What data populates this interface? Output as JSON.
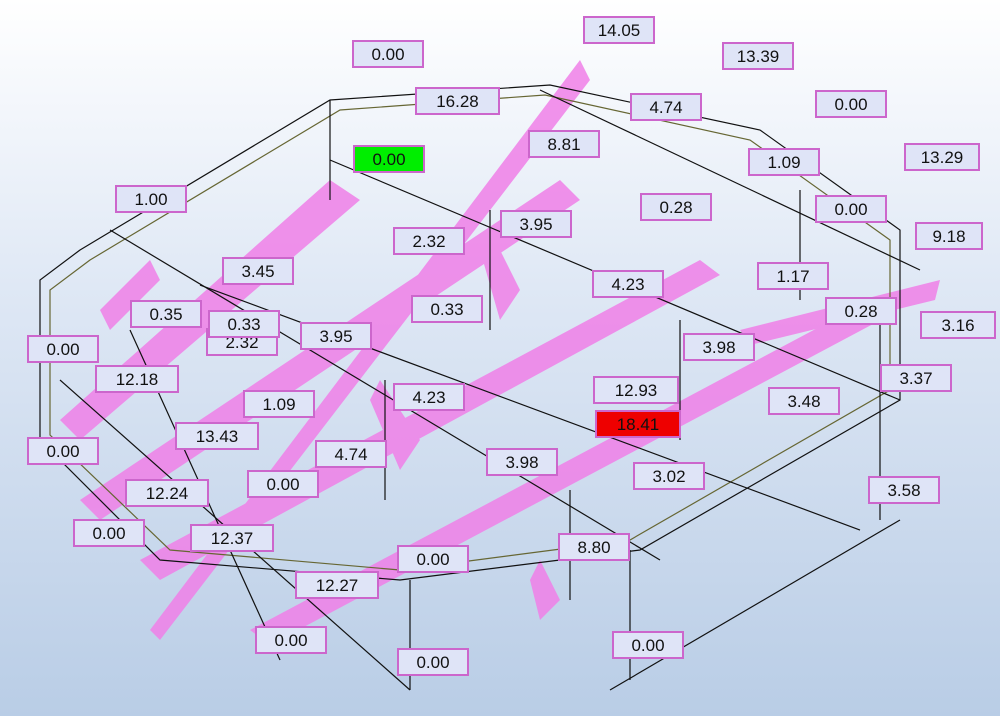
{
  "labels": [
    {
      "text": "14.05"
    },
    {
      "text": "0.00"
    },
    {
      "text": "13.39"
    },
    {
      "text": "16.28"
    },
    {
      "text": "4.74"
    },
    {
      "text": "0.00"
    },
    {
      "text": "0.00",
      "highlight": "#00ee00"
    },
    {
      "text": "8.81"
    },
    {
      "text": "1.09"
    },
    {
      "text": "13.29"
    },
    {
      "text": "1.00"
    },
    {
      "text": "0.00"
    },
    {
      "text": "0.28"
    },
    {
      "text": "3.95"
    },
    {
      "text": "2.32"
    },
    {
      "text": "9.18"
    },
    {
      "text": "3.45"
    },
    {
      "text": "4.23"
    },
    {
      "text": "1.17"
    },
    {
      "text": "0.35"
    },
    {
      "text": "2.32"
    },
    {
      "text": "0.33"
    },
    {
      "text": "0.33"
    },
    {
      "text": "3.95"
    },
    {
      "text": "0.28"
    },
    {
      "text": "3.16"
    },
    {
      "text": "0.00"
    },
    {
      "text": "3.98"
    },
    {
      "text": "12.18"
    },
    {
      "text": "3.37"
    },
    {
      "text": "12.93"
    },
    {
      "text": "4.23"
    },
    {
      "text": "1.09"
    },
    {
      "text": "3.48"
    },
    {
      "text": "18.41",
      "highlight": "#ee0000"
    },
    {
      "text": "13.43"
    },
    {
      "text": "0.00"
    },
    {
      "text": "4.74"
    },
    {
      "text": "3.98"
    },
    {
      "text": "3.02"
    },
    {
      "text": "0.00"
    },
    {
      "text": "12.24"
    },
    {
      "text": "3.58"
    },
    {
      "text": "0.00"
    },
    {
      "text": "12.37"
    },
    {
      "text": "8.80"
    },
    {
      "text": "0.00"
    },
    {
      "text": "12.27"
    },
    {
      "text": "0.00"
    },
    {
      "text": "0.00"
    },
    {
      "text": "0.00"
    }
  ]
}
